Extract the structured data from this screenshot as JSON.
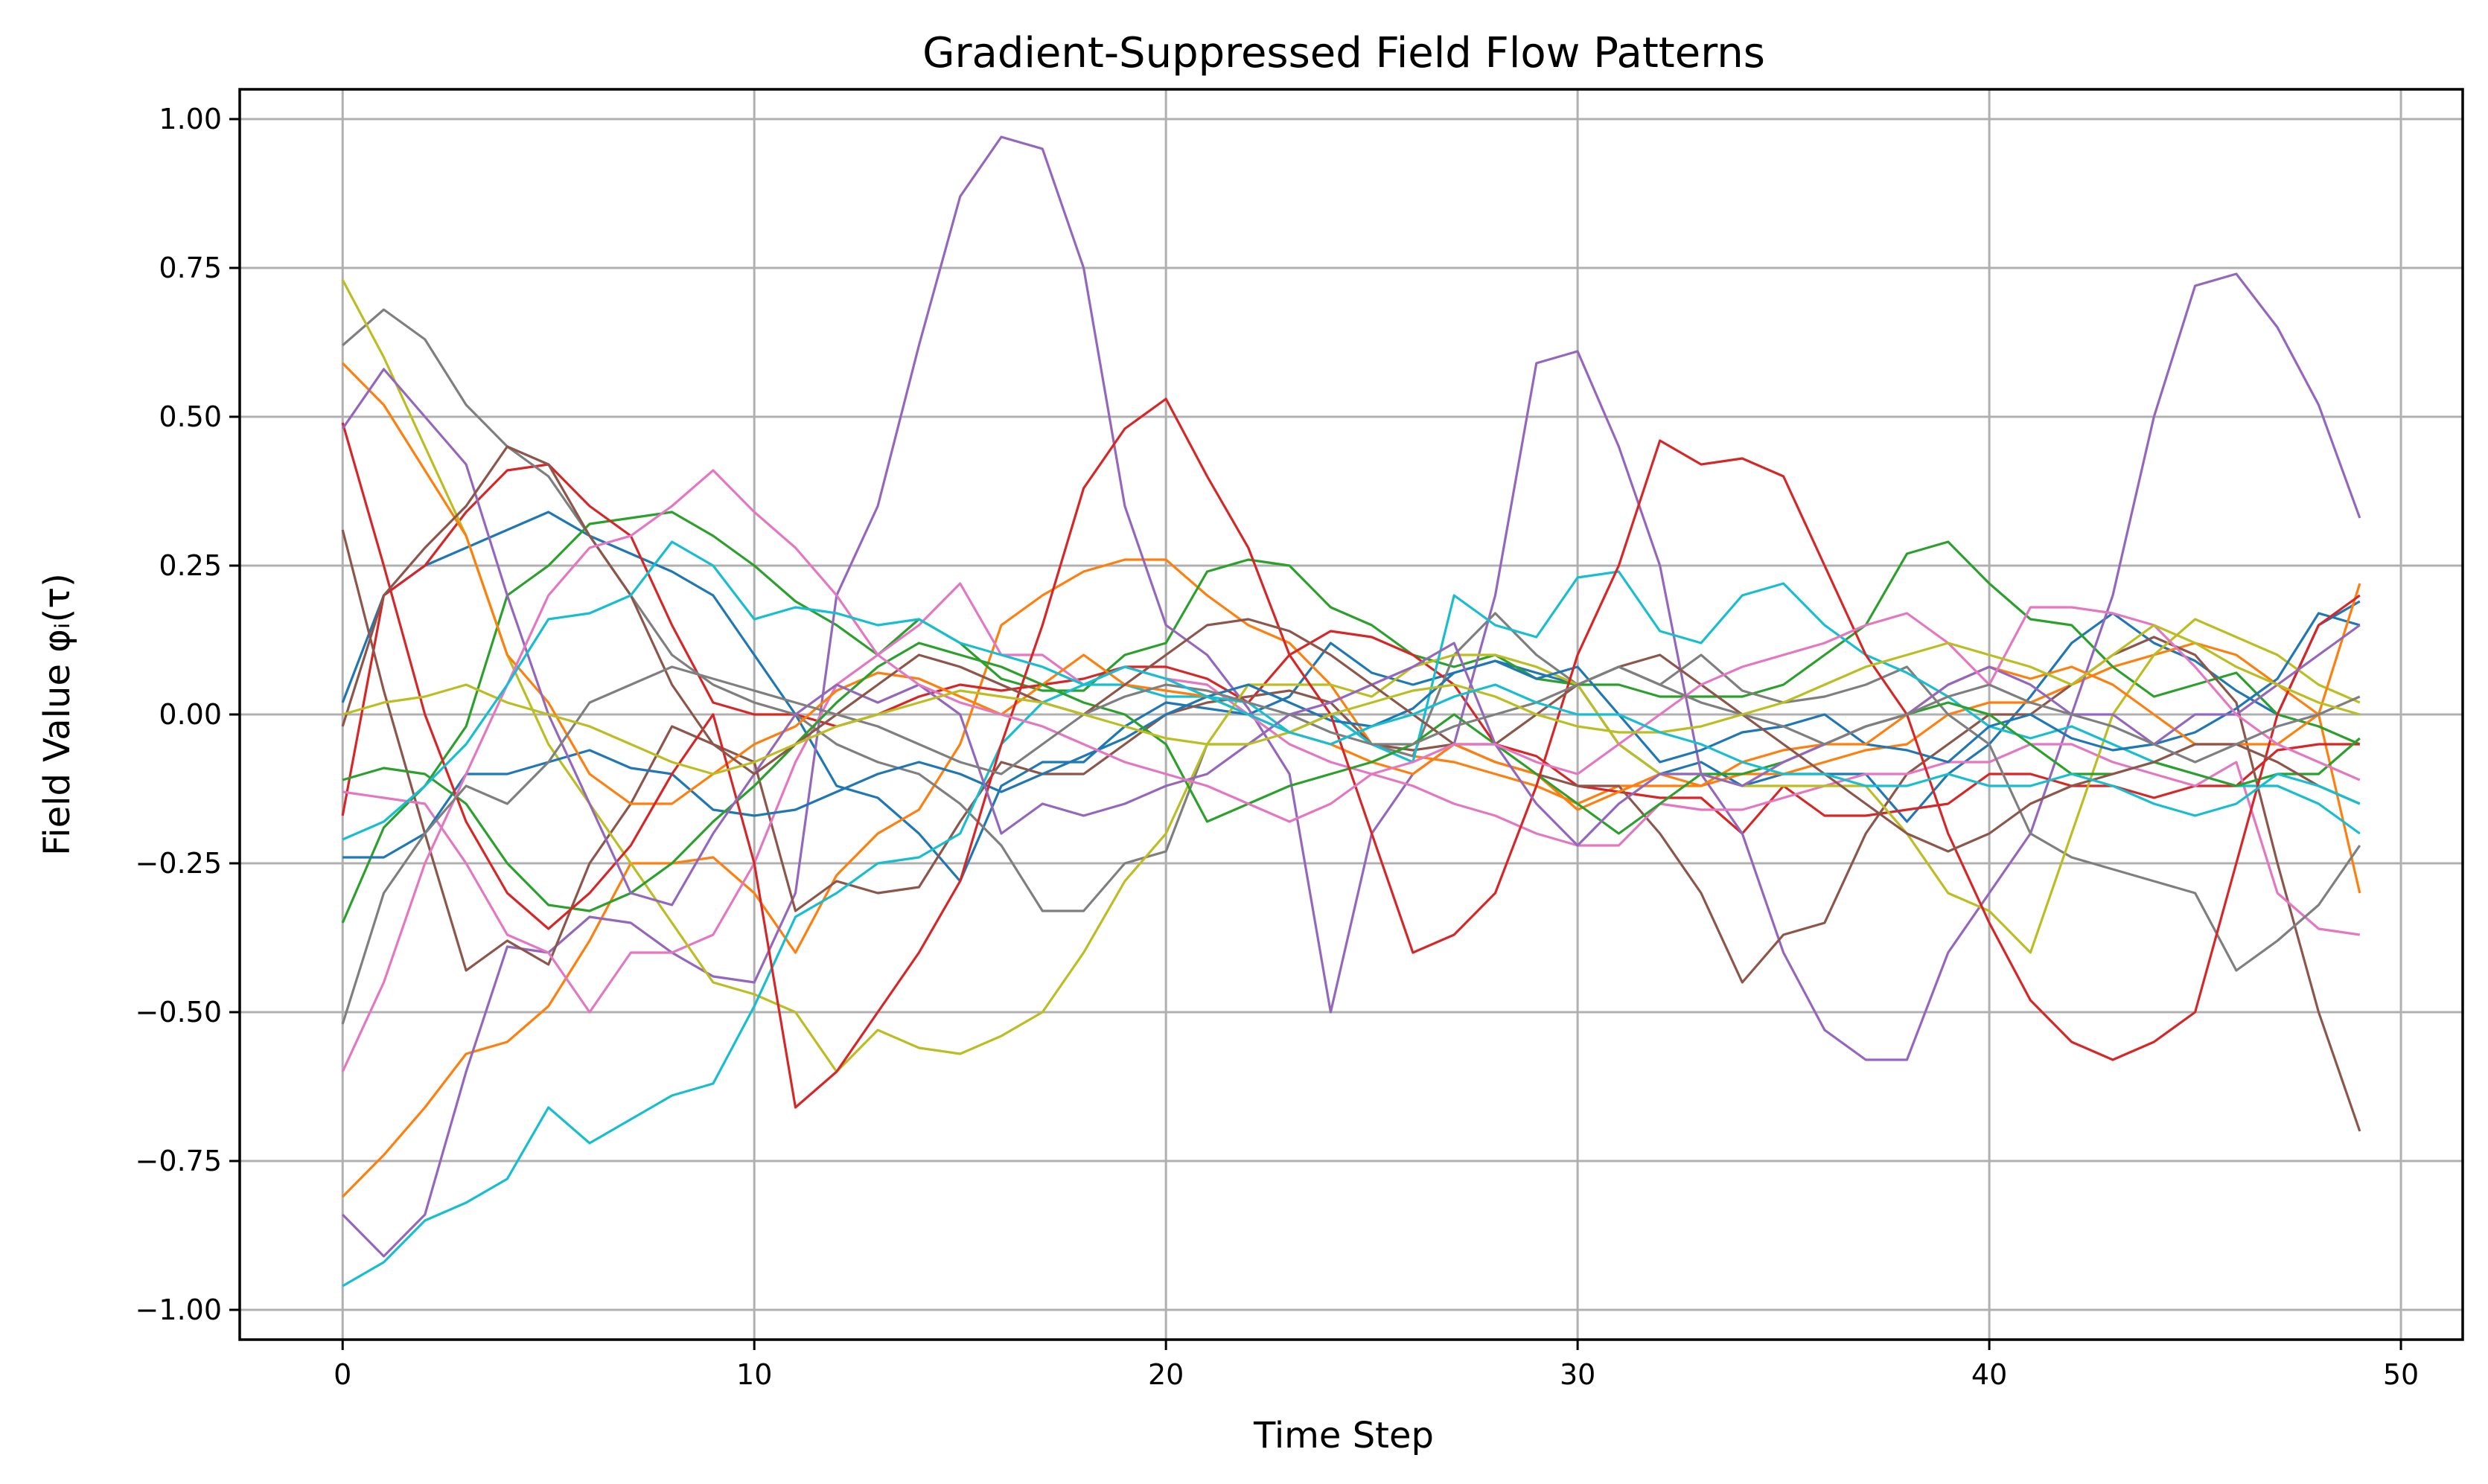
{
  "chart_data": {
    "type": "line",
    "title": "Gradient-Suppressed Field Flow Patterns",
    "xlabel": "Time Step",
    "ylabel": "Field Value φᵢ(τ)",
    "xlim": [
      -2.5,
      51.5
    ],
    "ylim": [
      -1.05,
      1.05
    ],
    "xticks": [
      0,
      10,
      20,
      30,
      40,
      50
    ],
    "xtick_labels": [
      "0",
      "10",
      "20",
      "30",
      "40",
      "50"
    ],
    "yticks": [
      1.0,
      0.75,
      0.5,
      0.25,
      0.0,
      -0.25,
      -0.5,
      -0.75,
      -1.0
    ],
    "ytick_labels": [
      "1.00",
      "0.75",
      "0.50",
      "0.25",
      "0.00",
      "−0.25",
      "−0.50",
      "−0.75",
      "−1.00"
    ],
    "grid": true,
    "legend": "none",
    "x": [
      0,
      1,
      2,
      3,
      4,
      5,
      6,
      7,
      8,
      9,
      10,
      11,
      12,
      13,
      14,
      15,
      16,
      17,
      18,
      19,
      20,
      21,
      22,
      23,
      24,
      25,
      26,
      27,
      28,
      29,
      30,
      31,
      32,
      33,
      34,
      35,
      36,
      37,
      38,
      39,
      40,
      41,
      42,
      43,
      44,
      45,
      46,
      47,
      48,
      49
    ],
    "series": [
      {
        "color": "#1f77b4",
        "values": [
          0.02,
          0.2,
          0.25,
          0.28,
          0.31,
          0.34,
          0.3,
          0.27,
          0.24,
          0.2,
          0.1,
          0.0,
          -0.12,
          -0.14,
          -0.2,
          -0.28,
          -0.12,
          -0.08,
          -0.08,
          -0.02,
          0.02,
          0.01,
          0.0,
          0.03,
          0.12,
          0.07,
          0.05,
          0.07,
          0.09,
          0.07,
          0.05,
          -0.05,
          -0.1,
          -0.08,
          -0.12,
          -0.1,
          -0.1,
          -0.1,
          -0.18,
          -0.1,
          -0.05,
          0.03,
          0.12,
          0.17,
          0.12,
          0.09,
          0.04,
          0.0,
          0.15,
          0.19
        ]
      },
      {
        "color": "#ff7f0e",
        "values": [
          -0.81,
          -0.74,
          -0.66,
          -0.57,
          -0.55,
          -0.49,
          -0.38,
          -0.25,
          -0.25,
          -0.24,
          -0.3,
          -0.4,
          -0.27,
          -0.2,
          -0.16,
          -0.05,
          0.15,
          0.2,
          0.24,
          0.26,
          0.26,
          0.2,
          0.15,
          0.12,
          0.05,
          -0.05,
          -0.07,
          -0.08,
          -0.1,
          -0.12,
          -0.15,
          -0.12,
          -0.12,
          -0.12,
          -0.1,
          -0.1,
          -0.08,
          -0.06,
          -0.05,
          0.0,
          0.02,
          0.02,
          0.05,
          0.08,
          0.1,
          0.12,
          0.1,
          0.05,
          0.0,
          -0.3
        ]
      },
      {
        "color": "#2ca02c",
        "values": [
          -0.35,
          -0.19,
          -0.12,
          -0.02,
          0.2,
          0.25,
          0.32,
          0.33,
          0.34,
          0.3,
          0.25,
          0.19,
          0.15,
          0.1,
          0.16,
          0.12,
          0.06,
          0.04,
          0.04,
          0.1,
          0.12,
          0.24,
          0.26,
          0.25,
          0.18,
          0.15,
          0.1,
          0.08,
          0.1,
          0.06,
          0.05,
          0.05,
          0.03,
          0.03,
          0.03,
          0.05,
          0.1,
          0.15,
          0.27,
          0.29,
          0.22,
          0.16,
          0.15,
          0.08,
          0.03,
          0.05,
          0.07,
          0.0,
          -0.02,
          -0.05
        ]
      },
      {
        "color": "#d62728",
        "values": [
          -0.17,
          0.2,
          0.25,
          0.34,
          0.41,
          0.42,
          0.35,
          0.3,
          0.15,
          0.02,
          0.0,
          0.0,
          -0.02,
          0.0,
          0.03,
          0.05,
          0.04,
          0.05,
          0.06,
          0.08,
          0.08,
          0.06,
          0.02,
          0.1,
          0.14,
          0.13,
          0.1,
          0.05,
          -0.05,
          -0.07,
          -0.12,
          -0.13,
          -0.14,
          -0.14,
          -0.2,
          -0.12,
          -0.17,
          -0.17,
          -0.16,
          -0.15,
          -0.1,
          -0.1,
          -0.12,
          -0.12,
          -0.14,
          -0.12,
          -0.12,
          -0.06,
          -0.05,
          -0.05
        ]
      },
      {
        "color": "#9467bd",
        "values": [
          -0.84,
          -0.91,
          -0.84,
          -0.6,
          -0.39,
          -0.4,
          -0.34,
          -0.35,
          -0.4,
          -0.44,
          -0.45,
          -0.3,
          0.2,
          0.35,
          0.62,
          0.87,
          0.97,
          0.95,
          0.75,
          0.35,
          0.15,
          0.1,
          0.01,
          -0.1,
          -0.5,
          -0.2,
          -0.1,
          -0.05,
          0.2,
          0.59,
          0.61,
          0.45,
          0.25,
          -0.1,
          -0.2,
          -0.4,
          -0.53,
          -0.58,
          -0.58,
          -0.4,
          -0.3,
          -0.2,
          0.0,
          0.2,
          0.5,
          0.72,
          0.74,
          0.65,
          0.52,
          0.33
        ]
      },
      {
        "color": "#8c564b",
        "values": [
          0.31,
          0.04,
          -0.2,
          -0.43,
          -0.38,
          -0.42,
          -0.25,
          -0.15,
          -0.02,
          -0.05,
          -0.08,
          -0.33,
          -0.28,
          -0.3,
          -0.29,
          -0.18,
          -0.08,
          -0.1,
          -0.1,
          -0.05,
          0.0,
          0.02,
          0.03,
          0.04,
          0.02,
          -0.05,
          -0.06,
          -0.05,
          -0.08,
          -0.1,
          -0.12,
          -0.12,
          -0.2,
          -0.3,
          -0.45,
          -0.37,
          -0.35,
          -0.2,
          -0.1,
          -0.05,
          0.0,
          0.0,
          0.05,
          0.1,
          0.13,
          0.1,
          0.02,
          -0.25,
          -0.5,
          -0.7
        ]
      },
      {
        "color": "#e377c2",
        "values": [
          -0.13,
          -0.14,
          -0.15,
          -0.25,
          -0.37,
          -0.4,
          -0.5,
          -0.4,
          -0.4,
          -0.37,
          -0.25,
          -0.08,
          0.05,
          0.1,
          0.15,
          0.22,
          0.1,
          0.1,
          0.05,
          0.08,
          0.06,
          0.05,
          0.0,
          -0.05,
          -0.08,
          -0.1,
          -0.12,
          -0.15,
          -0.17,
          -0.2,
          -0.22,
          -0.22,
          -0.15,
          -0.16,
          -0.16,
          -0.14,
          -0.12,
          -0.1,
          -0.1,
          -0.08,
          -0.08,
          -0.05,
          -0.05,
          -0.08,
          -0.1,
          -0.12,
          -0.08,
          -0.3,
          -0.36,
          -0.37
        ]
      },
      {
        "color": "#7f7f7f",
        "values": [
          0.62,
          0.68,
          0.63,
          0.52,
          0.45,
          0.4,
          0.3,
          0.2,
          0.1,
          0.05,
          0.02,
          0.0,
          -0.05,
          -0.08,
          -0.1,
          -0.15,
          -0.22,
          -0.33,
          -0.33,
          -0.25,
          -0.23,
          -0.05,
          -0.05,
          0.0,
          0.0,
          -0.05,
          -0.07,
          0.1,
          0.17,
          0.1,
          0.05,
          0.08,
          0.05,
          0.1,
          0.04,
          0.02,
          0.03,
          0.05,
          0.08,
          0.0,
          -0.05,
          -0.2,
          -0.24,
          -0.26,
          -0.28,
          -0.3,
          -0.43,
          -0.38,
          -0.32,
          -0.22
        ]
      },
      {
        "color": "#bcbd22",
        "values": [
          0.73,
          0.6,
          0.45,
          0.3,
          0.1,
          -0.05,
          -0.15,
          -0.25,
          -0.35,
          -0.45,
          -0.47,
          -0.5,
          -0.6,
          -0.53,
          -0.56,
          -0.57,
          -0.54,
          -0.5,
          -0.4,
          -0.28,
          -0.2,
          -0.05,
          0.05,
          0.05,
          0.05,
          0.03,
          0.08,
          0.1,
          0.1,
          0.08,
          0.05,
          -0.05,
          -0.1,
          -0.1,
          -0.12,
          -0.12,
          -0.12,
          -0.12,
          -0.2,
          -0.3,
          -0.33,
          -0.4,
          -0.2,
          0.0,
          0.1,
          0.16,
          0.13,
          0.1,
          0.05,
          0.02
        ]
      },
      {
        "color": "#17becf",
        "values": [
          -0.96,
          -0.92,
          -0.85,
          -0.82,
          -0.78,
          -0.66,
          -0.72,
          -0.68,
          -0.64,
          -0.62,
          -0.49,
          -0.34,
          -0.3,
          -0.25,
          -0.24,
          -0.2,
          -0.05,
          0.02,
          0.05,
          0.05,
          0.03,
          0.03,
          0.02,
          -0.03,
          0.0,
          -0.05,
          -0.08,
          0.2,
          0.15,
          0.13,
          0.23,
          0.24,
          0.14,
          0.12,
          0.2,
          0.22,
          0.15,
          0.1,
          0.07,
          0.03,
          -0.02,
          -0.04,
          -0.02,
          -0.05,
          -0.08,
          -0.1,
          -0.12,
          -0.12,
          -0.15,
          -0.2
        ]
      },
      {
        "color": "#1f77b4",
        "values": [
          -0.24,
          -0.24,
          -0.2,
          -0.1,
          -0.1,
          -0.08,
          -0.06,
          -0.09,
          -0.1,
          -0.16,
          -0.17,
          -0.16,
          -0.13,
          -0.1,
          -0.08,
          -0.1,
          -0.13,
          -0.1,
          -0.07,
          -0.04,
          0.0,
          0.03,
          0.05,
          0.02,
          -0.01,
          -0.02,
          0.01,
          0.07,
          0.09,
          0.06,
          0.08,
          0.0,
          -0.08,
          -0.06,
          -0.03,
          -0.02,
          0.0,
          -0.05,
          -0.06,
          -0.08,
          -0.02,
          0.0,
          -0.04,
          -0.06,
          -0.05,
          -0.03,
          0.01,
          0.06,
          0.17,
          0.15
        ]
      },
      {
        "color": "#ff7f0e",
        "values": [
          0.59,
          0.52,
          0.41,
          0.3,
          0.1,
          0.02,
          -0.1,
          -0.15,
          -0.15,
          -0.1,
          -0.05,
          -0.02,
          0.04,
          0.07,
          0.06,
          0.03,
          0.0,
          0.05,
          0.1,
          0.05,
          0.04,
          0.03,
          0.0,
          -0.03,
          -0.05,
          -0.08,
          -0.1,
          -0.05,
          -0.08,
          -0.1,
          -0.16,
          -0.13,
          -0.1,
          -0.12,
          -0.08,
          -0.06,
          -0.05,
          -0.05,
          0.0,
          0.05,
          0.08,
          0.06,
          0.08,
          0.05,
          0.0,
          -0.05,
          -0.05,
          -0.05,
          0.0,
          0.22
        ]
      },
      {
        "color": "#2ca02c",
        "values": [
          -0.11,
          -0.09,
          -0.1,
          -0.15,
          -0.25,
          -0.32,
          -0.33,
          -0.3,
          -0.25,
          -0.18,
          -0.12,
          -0.05,
          0.02,
          0.08,
          0.12,
          0.1,
          0.08,
          0.05,
          0.02,
          0.0,
          -0.05,
          -0.18,
          -0.15,
          -0.12,
          -0.1,
          -0.08,
          -0.05,
          0.0,
          -0.05,
          -0.1,
          -0.15,
          -0.2,
          -0.15,
          -0.1,
          -0.1,
          -0.08,
          -0.05,
          -0.02,
          0.0,
          0.02,
          0.0,
          -0.05,
          -0.1,
          -0.1,
          -0.08,
          -0.1,
          -0.12,
          -0.1,
          -0.1,
          -0.04
        ]
      },
      {
        "color": "#d62728",
        "values": [
          0.49,
          0.25,
          0.0,
          -0.18,
          -0.3,
          -0.36,
          -0.3,
          -0.22,
          -0.1,
          0.0,
          -0.25,
          -0.66,
          -0.6,
          -0.5,
          -0.4,
          -0.28,
          -0.05,
          0.15,
          0.38,
          0.48,
          0.53,
          0.4,
          0.28,
          0.1,
          0.0,
          -0.2,
          -0.4,
          -0.37,
          -0.3,
          -0.12,
          0.1,
          0.25,
          0.46,
          0.42,
          0.43,
          0.4,
          0.25,
          0.1,
          0.0,
          -0.2,
          -0.35,
          -0.48,
          -0.55,
          -0.58,
          -0.55,
          -0.5,
          -0.25,
          0.0,
          0.15,
          0.2
        ]
      },
      {
        "color": "#9467bd",
        "values": [
          0.48,
          0.58,
          0.5,
          0.42,
          0.2,
          0.0,
          -0.15,
          -0.3,
          -0.32,
          -0.2,
          -0.1,
          0.0,
          0.05,
          0.02,
          0.05,
          0.0,
          -0.2,
          -0.15,
          -0.17,
          -0.15,
          -0.12,
          -0.1,
          -0.05,
          0.0,
          0.02,
          0.05,
          0.08,
          0.12,
          -0.05,
          -0.15,
          -0.22,
          -0.15,
          -0.1,
          -0.1,
          -0.12,
          -0.08,
          -0.05,
          -0.02,
          0.0,
          0.05,
          0.08,
          0.05,
          0.0,
          0.0,
          -0.05,
          0.0,
          0.0,
          0.05,
          0.1,
          0.15
        ]
      },
      {
        "color": "#8c564b",
        "values": [
          -0.02,
          0.2,
          0.28,
          0.35,
          0.45,
          0.42,
          0.3,
          0.2,
          0.05,
          -0.05,
          -0.1,
          -0.05,
          0.0,
          0.05,
          0.1,
          0.08,
          0.05,
          0.02,
          0.0,
          0.05,
          0.1,
          0.15,
          0.16,
          0.14,
          0.1,
          0.05,
          0.0,
          -0.05,
          -0.05,
          0.0,
          0.05,
          0.08,
          0.1,
          0.05,
          0.0,
          -0.05,
          -0.1,
          -0.15,
          -0.2,
          -0.23,
          -0.2,
          -0.15,
          -0.12,
          -0.1,
          -0.08,
          -0.05,
          -0.05,
          -0.08,
          -0.12,
          -0.15
        ]
      },
      {
        "color": "#e377c2",
        "values": [
          -0.6,
          -0.45,
          -0.25,
          -0.1,
          0.05,
          0.2,
          0.28,
          0.3,
          0.35,
          0.41,
          0.34,
          0.28,
          0.2,
          0.1,
          0.05,
          0.02,
          0.0,
          -0.02,
          -0.05,
          -0.08,
          -0.1,
          -0.12,
          -0.15,
          -0.18,
          -0.15,
          -0.1,
          -0.08,
          -0.05,
          -0.05,
          -0.08,
          -0.1,
          -0.05,
          0.0,
          0.05,
          0.08,
          0.1,
          0.12,
          0.15,
          0.17,
          0.12,
          0.05,
          0.18,
          0.18,
          0.17,
          0.15,
          0.08,
          0.0,
          -0.05,
          -0.08,
          -0.11
        ]
      },
      {
        "color": "#7f7f7f",
        "values": [
          -0.52,
          -0.3,
          -0.2,
          -0.12,
          -0.15,
          -0.08,
          0.02,
          0.05,
          0.08,
          0.06,
          0.04,
          0.02,
          0.0,
          -0.02,
          -0.05,
          -0.08,
          -0.1,
          -0.05,
          0.0,
          0.03,
          0.05,
          0.04,
          0.02,
          0.0,
          -0.03,
          -0.05,
          -0.05,
          -0.02,
          0.0,
          0.02,
          0.05,
          0.08,
          0.05,
          0.02,
          0.0,
          -0.02,
          -0.05,
          -0.02,
          0.0,
          0.03,
          0.05,
          0.02,
          0.0,
          -0.02,
          -0.05,
          -0.08,
          -0.05,
          -0.02,
          0.0,
          0.03
        ]
      },
      {
        "color": "#bcbd22",
        "values": [
          0.0,
          0.02,
          0.03,
          0.05,
          0.02,
          0.0,
          -0.02,
          -0.05,
          -0.08,
          -0.1,
          -0.08,
          -0.05,
          -0.02,
          0.0,
          0.02,
          0.04,
          0.03,
          0.02,
          0.0,
          -0.02,
          -0.04,
          -0.05,
          -0.05,
          -0.03,
          0.0,
          0.02,
          0.04,
          0.05,
          0.03,
          0.0,
          -0.02,
          -0.03,
          -0.03,
          -0.02,
          0.0,
          0.02,
          0.05,
          0.08,
          0.1,
          0.12,
          0.1,
          0.08,
          0.05,
          0.1,
          0.15,
          0.12,
          0.08,
          0.05,
          0.02,
          0.0
        ]
      },
      {
        "color": "#17becf",
        "values": [
          -0.21,
          -0.18,
          -0.12,
          -0.05,
          0.05,
          0.16,
          0.17,
          0.2,
          0.29,
          0.25,
          0.16,
          0.18,
          0.17,
          0.15,
          0.16,
          0.12,
          0.1,
          0.08,
          0.05,
          0.08,
          0.06,
          0.03,
          0.0,
          -0.03,
          -0.05,
          -0.02,
          0.0,
          0.03,
          0.05,
          0.02,
          0.0,
          0.0,
          -0.03,
          -0.05,
          -0.08,
          -0.1,
          -0.1,
          -0.12,
          -0.12,
          -0.1,
          -0.12,
          -0.12,
          -0.1,
          -0.12,
          -0.15,
          -0.17,
          -0.15,
          -0.1,
          -0.12,
          -0.15
        ]
      }
    ]
  }
}
